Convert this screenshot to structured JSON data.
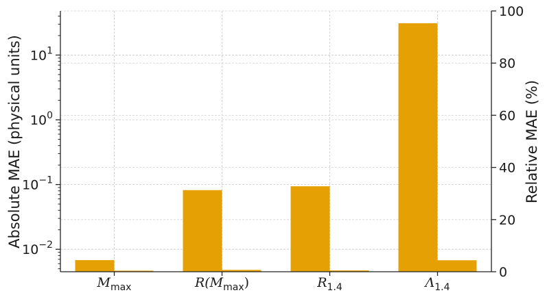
{
  "chart_data": {
    "type": "bar",
    "categories": [
      {
        "base": "M",
        "sub": "max"
      },
      {
        "base": "R(M",
        "sub": "max",
        "suffix": ")"
      },
      {
        "base": "R",
        "sub": "1.4"
      },
      {
        "base": "Λ",
        "sub": "1.4"
      }
    ],
    "series": [
      {
        "axis": "left",
        "color": "#e5a103",
        "values": [
          0.0068,
          0.082,
          0.094,
          31.0
        ]
      },
      {
        "axis": "right",
        "color": "#e5a103",
        "values": [
          0.4,
          0.7,
          0.5,
          4.4
        ]
      }
    ],
    "left_axis": {
      "label": "Absolute MAE (physical units)",
      "scale": "log",
      "ylim": [
        0.0045,
        48
      ],
      "ticks": [
        {
          "value": 0.01,
          "base": "10",
          "exp": "−2"
        },
        {
          "value": 0.1,
          "base": "10",
          "exp": "−1"
        },
        {
          "value": 1,
          "base": "10",
          "exp": "0"
        },
        {
          "value": 10,
          "base": "10",
          "exp": "1"
        }
      ]
    },
    "right_axis": {
      "label": "Relative MAE (%)",
      "scale": "linear",
      "ylim": [
        0,
        100
      ],
      "ticks": [
        "0",
        "20",
        "40",
        "60",
        "80",
        "100"
      ]
    },
    "grid": true,
    "legend": "none"
  }
}
